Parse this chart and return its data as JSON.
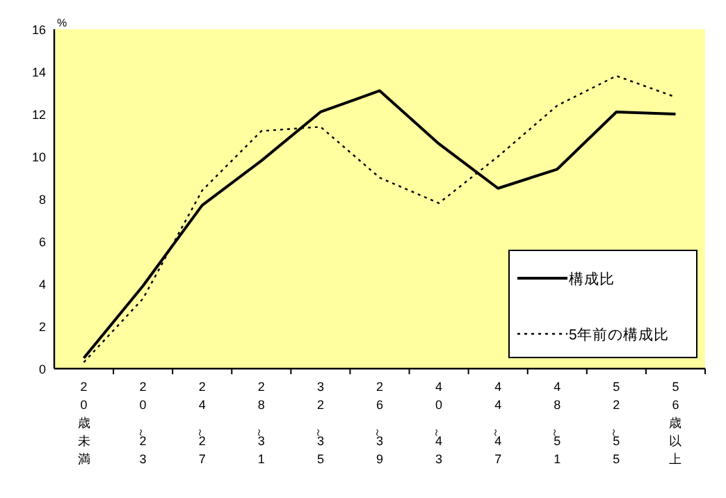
{
  "chart_data": {
    "type": "line",
    "ylabel": "%",
    "categories": [
      "20歳未満",
      "20～23",
      "24～27",
      "28～31",
      "32～35",
      "26～39",
      "40～43",
      "44～47",
      "48～51",
      "52～55",
      "56歳以上"
    ],
    "series": [
      {
        "name": "構成比",
        "color": "#000000",
        "line_style": "solid",
        "values": [
          0.5,
          3.9,
          7.7,
          9.8,
          12.1,
          13.1,
          10.6,
          8.5,
          9.4,
          12.1,
          12.0
        ]
      },
      {
        "name": "5年前の構成比",
        "color": "#000000",
        "line_style": "dotted",
        "values": [
          0.3,
          3.3,
          8.4,
          11.2,
          11.4,
          9.0,
          7.8,
          10.0,
          12.4,
          13.8,
          12.8
        ]
      }
    ],
    "ylim": [
      0,
      16
    ],
    "yticks": [
      0,
      2,
      4,
      6,
      8,
      10,
      12,
      14,
      16
    ],
    "grid": false,
    "legend": "bottom right",
    "marker": "none"
  }
}
